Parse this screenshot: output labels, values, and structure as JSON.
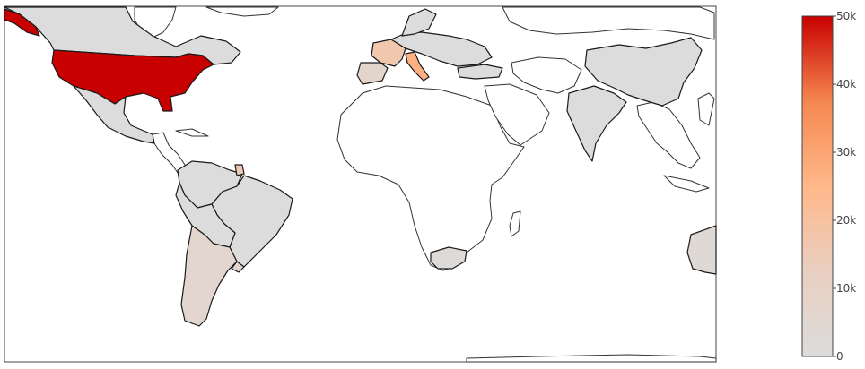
{
  "colorscale": {
    "min": 0,
    "max": 50000,
    "colors": [
      "#dcdcdc",
      "#e9cfc0",
      "#ffb88a",
      "#f5874f",
      "#c80000"
    ],
    "ticks": [
      {
        "value": 0,
        "label": "0"
      },
      {
        "value": 10000,
        "label": "10k"
      },
      {
        "value": 20000,
        "label": "20k"
      },
      {
        "value": 30000,
        "label": "30k"
      },
      {
        "value": 40000,
        "label": "40k"
      },
      {
        "value": 50000,
        "label": "50k"
      }
    ]
  },
  "chart_data": {
    "type": "choropleth",
    "scope": "world",
    "locations": [
      {
        "region": "United States",
        "value": 50000
      },
      {
        "region": "Canada",
        "value": 0
      },
      {
        "region": "Mexico",
        "value": 0
      },
      {
        "region": "French Guiana",
        "value": 16000
      },
      {
        "region": "Colombia/Venezuela",
        "value": 0
      },
      {
        "region": "Brazil",
        "value": 0
      },
      {
        "region": "Peru",
        "value": 0
      },
      {
        "region": "Bolivia",
        "value": 0
      },
      {
        "region": "Argentina",
        "value": 6000
      },
      {
        "region": "Chile",
        "value": 6000
      },
      {
        "region": "Uruguay",
        "value": 6000
      },
      {
        "region": "France",
        "value": 17000
      },
      {
        "region": "Italy",
        "value": 27000
      },
      {
        "region": "Spain",
        "value": 7000
      },
      {
        "region": "Portugal",
        "value": 7000
      },
      {
        "region": "Germany",
        "value": 0
      },
      {
        "region": "Eastern Europe",
        "value": 0
      },
      {
        "region": "Turkey",
        "value": 0
      },
      {
        "region": "Israel",
        "value": 0
      },
      {
        "region": "South Africa",
        "value": 2000
      },
      {
        "region": "India",
        "value": 0
      },
      {
        "region": "China",
        "value": 0
      },
      {
        "region": "Australia",
        "value": 3000
      }
    ]
  }
}
